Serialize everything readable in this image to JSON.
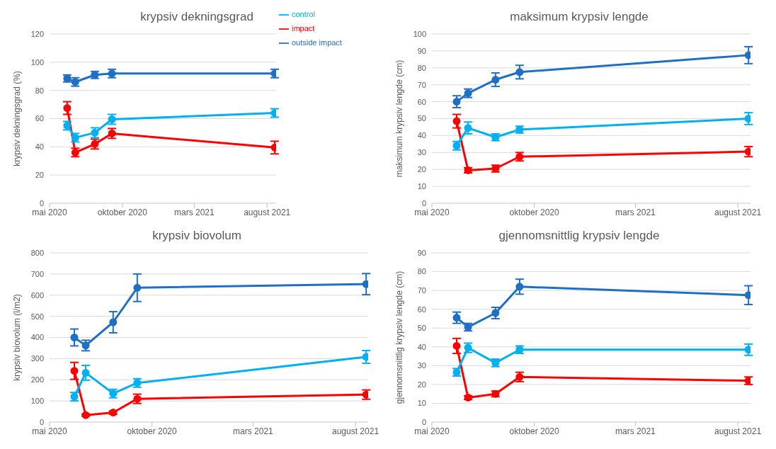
{
  "chart_data": [
    {
      "type": "line",
      "title": "krypsiv dekningsgrad",
      "ylabel": "krypsiv dekningsgrad (%)",
      "x": [
        "2020-06-07",
        "2020-06-24",
        "2020-08-04",
        "2020-09-09",
        "2021-08-17"
      ],
      "xlim": [
        "2020-05-01",
        "2021-08-20"
      ],
      "xticks": [
        {
          "value": "2020-05-01",
          "label": "mai 2020"
        },
        {
          "value": "2020-10-01",
          "label": "oktober 2020"
        },
        {
          "value": "2021-03-01",
          "label": "mars 2021"
        },
        {
          "value": "2021-08-01",
          "label": "august 2021"
        }
      ],
      "ylim": [
        0,
        120
      ],
      "yticks": [
        0,
        20,
        40,
        60,
        80,
        100,
        120
      ],
      "grid": "y",
      "legend": "top right",
      "marker": "circle",
      "line_style": "solid",
      "series": [
        {
          "name": "impact",
          "color": "#ff0000",
          "values": [
            67.5,
            36,
            42,
            49.5,
            39.5
          ],
          "errors": [
            4.5,
            3,
            3.5,
            3.5,
            4.5
          ]
        },
        {
          "name": "outside impact",
          "color": "#1f6fc5",
          "values": [
            88.5,
            86,
            91,
            92,
            92
          ],
          "errors": [
            2.5,
            3,
            2.5,
            3,
            3
          ]
        },
        {
          "name": "control",
          "color": "#00b0f0",
          "values": [
            55,
            46.5,
            50,
            59.5,
            64
          ],
          "errors": [
            3,
            3,
            3.5,
            3.5,
            3
          ]
        }
      ]
    },
    {
      "type": "line",
      "title": "maksimum krypsiv lengde",
      "ylabel": "maksimum krypsiv lengde (cm)",
      "x": [
        "2020-06-07",
        "2020-06-24",
        "2020-08-04",
        "2020-09-09",
        "2021-08-17"
      ],
      "xlim": [
        "2020-05-01",
        "2021-08-20"
      ],
      "xticks": [
        {
          "value": "2020-05-01",
          "label": "mai 2020"
        },
        {
          "value": "2020-10-01",
          "label": "oktober 2020"
        },
        {
          "value": "2021-03-01",
          "label": "mars 2021"
        },
        {
          "value": "2021-08-01",
          "label": "august 2021"
        }
      ],
      "ylim": [
        0,
        100
      ],
      "yticks": [
        0,
        10,
        20,
        30,
        40,
        50,
        60,
        70,
        80,
        90,
        100
      ],
      "grid": "y",
      "marker": "circle",
      "line_style": "solid",
      "series": [
        {
          "color": "#ff0000",
          "values": [
            48.5,
            19.5,
            20.5,
            27.5,
            30.5
          ],
          "errors": [
            4,
            1.5,
            2,
            2.5,
            3
          ]
        },
        {
          "color": "#1f6fc5",
          "values": [
            60,
            65,
            73,
            77.5,
            87.5
          ],
          "errors": [
            3.5,
            2.5,
            4,
            4,
            5
          ]
        },
        {
          "color": "#00b0f0",
          "values": [
            34,
            44.5,
            39,
            43.5,
            50
          ],
          "errors": [
            2.5,
            3.5,
            2,
            2,
            3.5
          ]
        }
      ]
    },
    {
      "type": "line",
      "title": "krypsiv biovolum",
      "ylabel": "krypsiv biovolum (l/m2)",
      "x": [
        "2020-06-07",
        "2020-06-24",
        "2020-08-04",
        "2020-09-09",
        "2021-08-17"
      ],
      "xlim": [
        "2020-05-01",
        "2021-08-20"
      ],
      "xticks": [
        {
          "value": "2020-05-01",
          "label": "mai 2020"
        },
        {
          "value": "2020-10-01",
          "label": "oktober 2020"
        },
        {
          "value": "2021-03-01",
          "label": "mars 2021"
        },
        {
          "value": "2021-08-01",
          "label": "august 2021"
        }
      ],
      "ylim": [
        0,
        800
      ],
      "yticks": [
        0,
        100,
        200,
        300,
        400,
        500,
        600,
        700,
        800
      ],
      "grid": "y",
      "marker": "circle",
      "line_style": "solid",
      "series": [
        {
          "color": "#ff0000",
          "values": [
            242,
            33,
            45,
            110,
            130
          ],
          "errors": [
            40,
            5,
            8,
            22,
            22
          ]
        },
        {
          "color": "#1f6fc5",
          "values": [
            400,
            362,
            472,
            635,
            652
          ],
          "errors": [
            40,
            25,
            50,
            65,
            50
          ]
        },
        {
          "color": "#00b0f0",
          "values": [
            120,
            233,
            135,
            185,
            308
          ],
          "errors": [
            20,
            35,
            20,
            20,
            30
          ]
        }
      ]
    },
    {
      "type": "line",
      "title": "gjennomsnittlig krypsiv lengde",
      "ylabel": "gjennomsnittlig krypsiv lengde (cm)",
      "x": [
        "2020-06-07",
        "2020-06-24",
        "2020-08-04",
        "2020-09-09",
        "2021-08-17"
      ],
      "xlim": [
        "2020-05-01",
        "2021-08-20"
      ],
      "xticks": [
        {
          "value": "2020-05-01",
          "label": "mai 2020"
        },
        {
          "value": "2020-10-01",
          "label": "oktober 2020"
        },
        {
          "value": "2021-03-01",
          "label": "mars 2021"
        },
        {
          "value": "2021-08-01",
          "label": "august 2021"
        }
      ],
      "ylim": [
        0,
        90
      ],
      "yticks": [
        0,
        10,
        20,
        30,
        40,
        50,
        60,
        70,
        80,
        90
      ],
      "grid": "y",
      "marker": "circle",
      "line_style": "solid",
      "series": [
        {
          "color": "#ff0000",
          "values": [
            40.5,
            13,
            15,
            24,
            22
          ],
          "errors": [
            4,
            1,
            1.5,
            2.5,
            2
          ]
        },
        {
          "color": "#1f6fc5",
          "values": [
            55.5,
            50.5,
            58,
            72,
            67.5
          ],
          "errors": [
            3,
            2,
            3,
            4,
            5
          ]
        },
        {
          "color": "#00b0f0",
          "values": [
            26.5,
            39.5,
            31.5,
            38.5,
            38.5
          ],
          "errors": [
            2,
            2.5,
            2,
            2,
            3
          ]
        }
      ]
    }
  ]
}
